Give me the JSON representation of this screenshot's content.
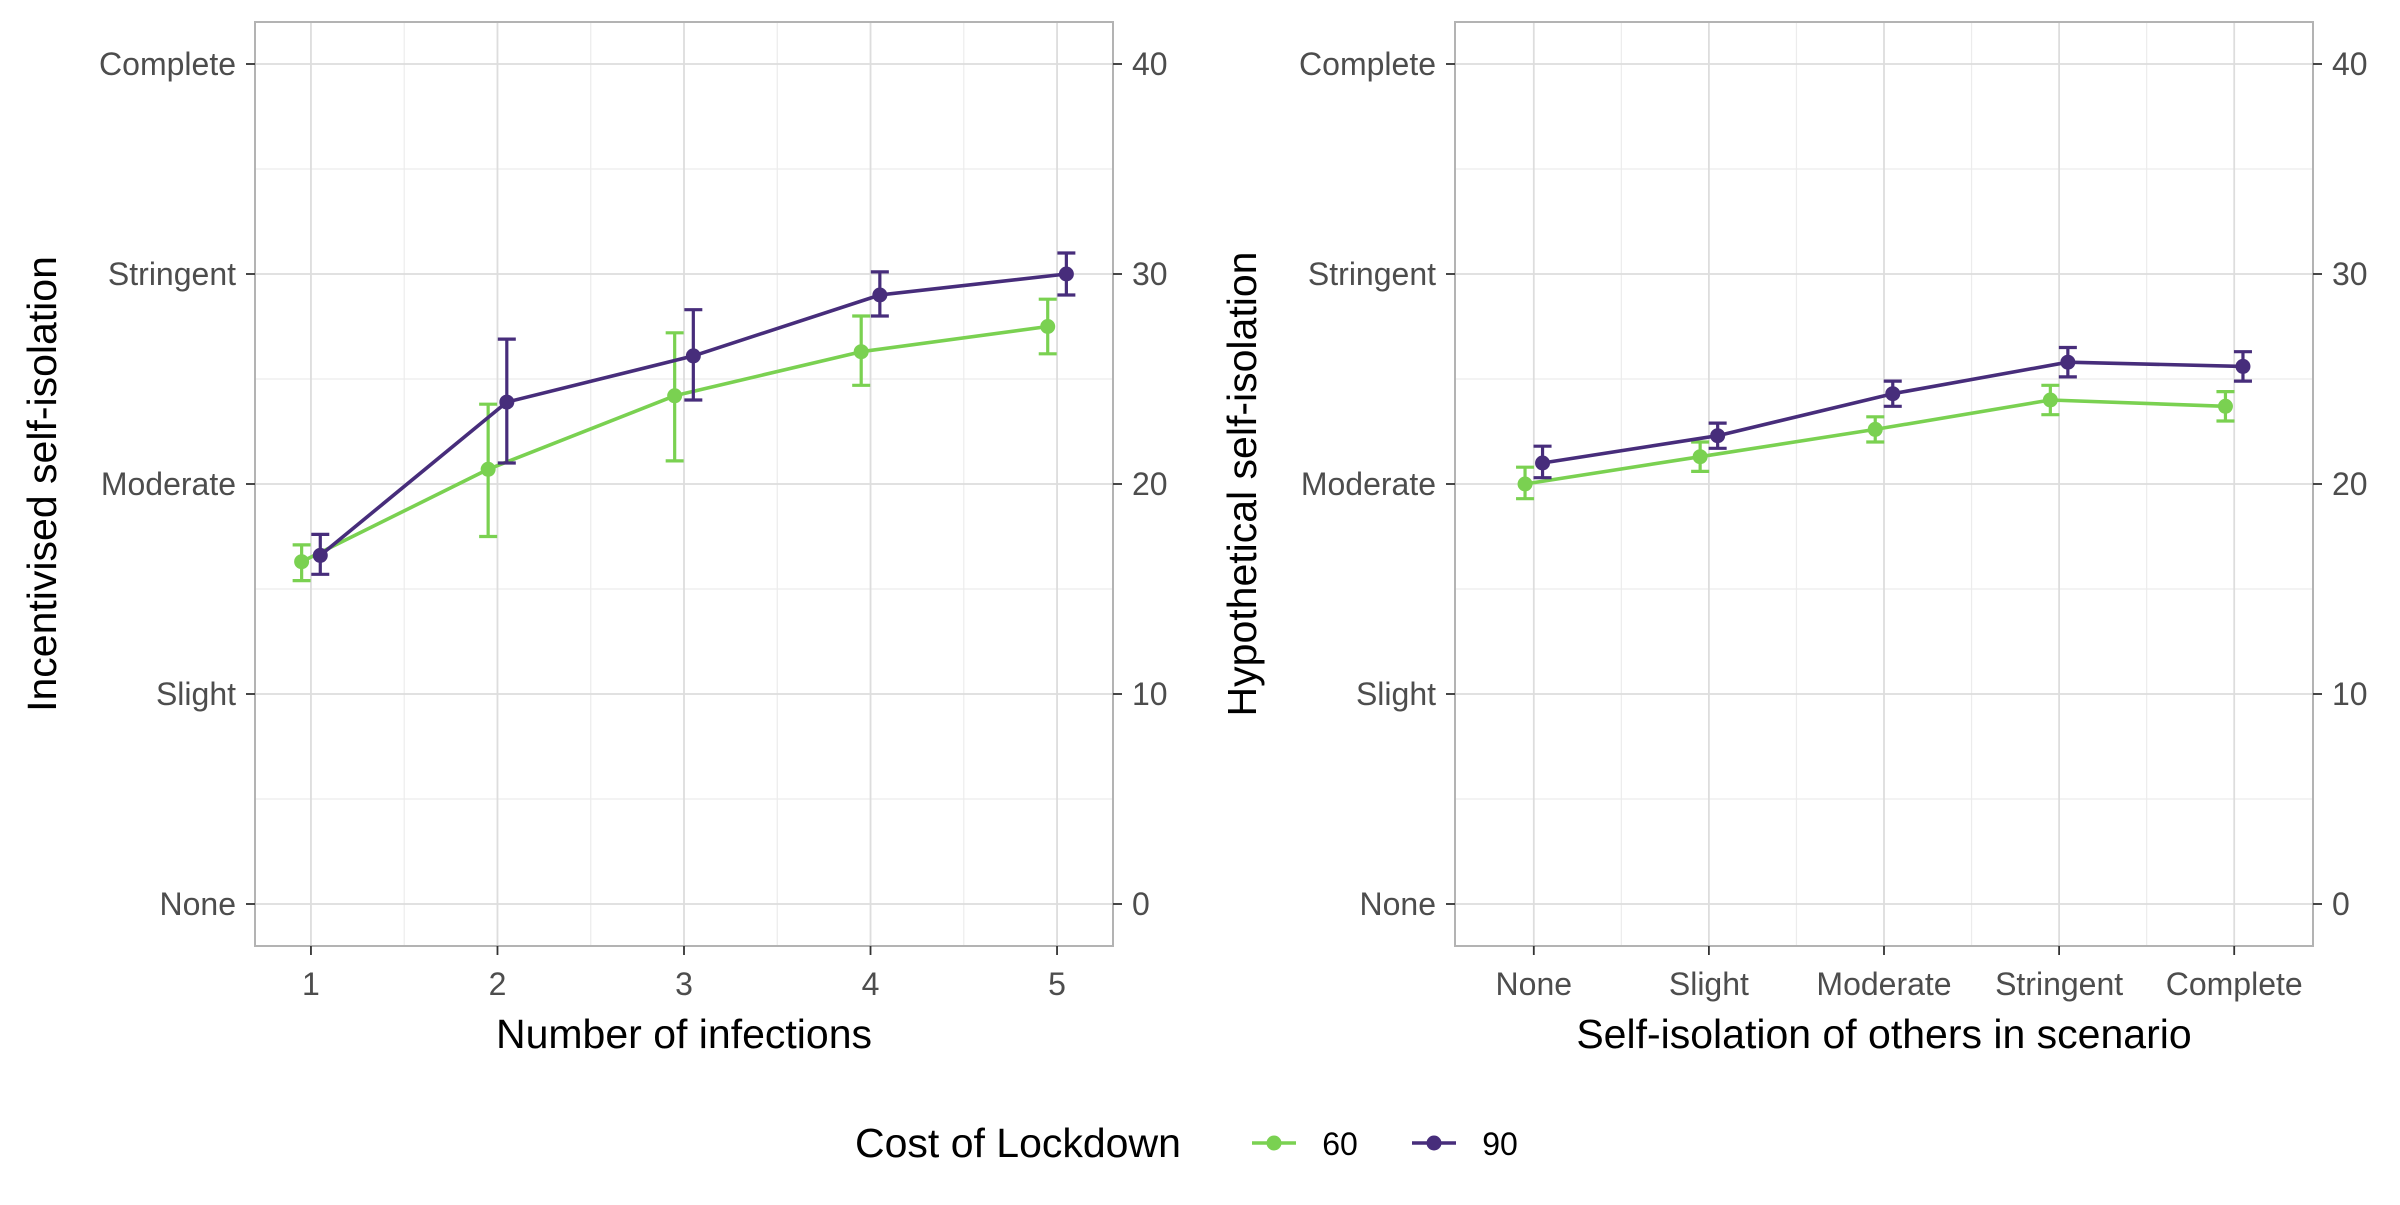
{
  "legend": {
    "title": "Cost of Lockdown",
    "position": "bottom",
    "entries": [
      {
        "label": "60",
        "color": "#7ad151"
      },
      {
        "label": "90",
        "color": "#472d7b"
      }
    ]
  },
  "chart_data": [
    {
      "type": "line",
      "xlabel": "Number of infections",
      "ylabel": "Incentivised self-isolation",
      "x": [
        1,
        2,
        3,
        4,
        5
      ],
      "xticks": [
        "1",
        "2",
        "3",
        "4",
        "5"
      ],
      "xlim": [
        0.7,
        5.3
      ],
      "ylim": [
        -2,
        42
      ],
      "left_ticks": [
        {
          "value": 0,
          "label": "None"
        },
        {
          "value": 10,
          "label": "Slight"
        },
        {
          "value": 20,
          "label": "Moderate"
        },
        {
          "value": 30,
          "label": "Stringent"
        },
        {
          "value": 40,
          "label": "Complete"
        }
      ],
      "right_ticks": [
        {
          "value": 0,
          "label": "0"
        },
        {
          "value": 10,
          "label": "10"
        },
        {
          "value": 20,
          "label": "20"
        },
        {
          "value": 30,
          "label": "30"
        },
        {
          "value": 40,
          "label": "40"
        }
      ],
      "grid": true,
      "error_bars": true,
      "series": [
        {
          "name": "60",
          "color": "#7ad151",
          "values": [
            16.3,
            20.7,
            24.2,
            26.3,
            27.5
          ],
          "lower": [
            15.4,
            17.5,
            21.1,
            24.7,
            26.2
          ],
          "upper": [
            17.1,
            23.8,
            27.2,
            28.0,
            28.8
          ]
        },
        {
          "name": "90",
          "color": "#472d7b",
          "values": [
            16.6,
            23.9,
            26.1,
            29.0,
            30.0
          ],
          "lower": [
            15.7,
            21.0,
            24.0,
            28.0,
            29.0
          ],
          "upper": [
            17.6,
            26.9,
            28.3,
            30.1,
            31.0
          ]
        }
      ]
    },
    {
      "type": "line",
      "xlabel": "Self-isolation of others in scenario",
      "ylabel": "Hypothetical self-isolation",
      "x": [
        1,
        2,
        3,
        4,
        5
      ],
      "xticks": [
        "None",
        "Slight",
        "Moderate",
        "Stringent",
        "Complete"
      ],
      "xlim": [
        0.55,
        5.45
      ],
      "ylim": [
        -2,
        42
      ],
      "left_ticks": [
        {
          "value": 0,
          "label": "None"
        },
        {
          "value": 10,
          "label": "Slight"
        },
        {
          "value": 20,
          "label": "Moderate"
        },
        {
          "value": 30,
          "label": "Stringent"
        },
        {
          "value": 40,
          "label": "Complete"
        }
      ],
      "right_ticks": [
        {
          "value": 0,
          "label": "0"
        },
        {
          "value": 10,
          "label": "10"
        },
        {
          "value": 20,
          "label": "20"
        },
        {
          "value": 30,
          "label": "30"
        },
        {
          "value": 40,
          "label": "40"
        }
      ],
      "grid": true,
      "error_bars": true,
      "series": [
        {
          "name": "60",
          "color": "#7ad151",
          "values": [
            20.0,
            21.3,
            22.6,
            24.0,
            23.7
          ],
          "lower": [
            19.3,
            20.6,
            22.0,
            23.3,
            23.0
          ],
          "upper": [
            20.8,
            22.0,
            23.2,
            24.7,
            24.4
          ]
        },
        {
          "name": "90",
          "color": "#472d7b",
          "values": [
            21.0,
            22.3,
            24.3,
            25.8,
            25.6
          ],
          "lower": [
            20.3,
            21.7,
            23.7,
            25.1,
            24.9
          ],
          "upper": [
            21.8,
            22.9,
            24.9,
            26.5,
            26.3
          ]
        }
      ]
    }
  ]
}
